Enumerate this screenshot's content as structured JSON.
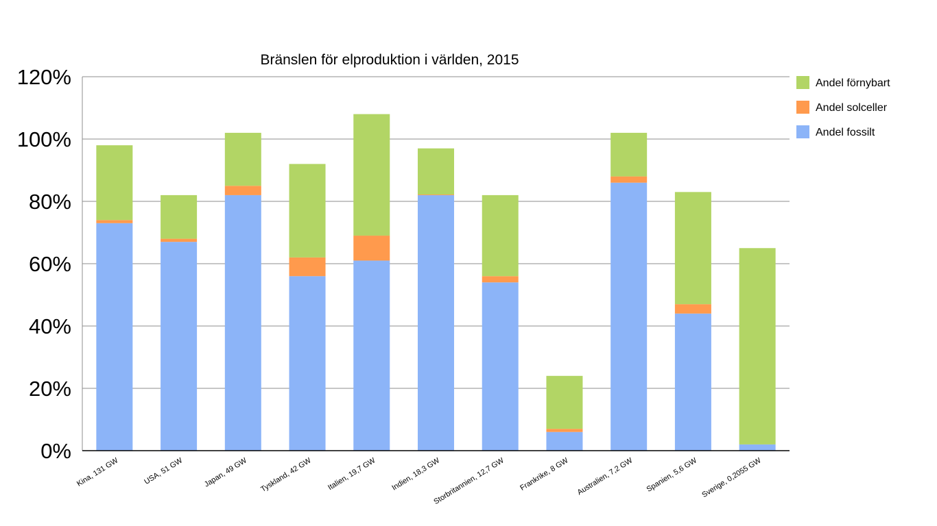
{
  "chart_data": {
    "type": "bar",
    "stacked": true,
    "title": "Bränslen för elproduktion i världen, 2015",
    "xlabel": "",
    "ylabel": "",
    "ylim": [
      0,
      120
    ],
    "y_tick_labels": [
      "0%",
      "20%",
      "40%",
      "60%",
      "80%",
      "100%",
      "120%"
    ],
    "grid": true,
    "legend_position": "right",
    "categories": [
      "Kina, 131 GW",
      "USA, 51 GW",
      "Japan, 49 GW",
      "Tyskland, 42 GW",
      "Italien, 19,7 GW",
      "Indien, 18,3 GW",
      "Storbritannien, 12,7 GW",
      "Frankrike, 8 GW",
      "Australien, 7,2 GW",
      "Spanien, 5,6 GW",
      "Sverige, 0,2055 GW"
    ],
    "series": [
      {
        "name": "Andel fossilt",
        "color": "#8cb4f8",
        "values": [
          73,
          67,
          82,
          56,
          61,
          82,
          54,
          6,
          86,
          44,
          2
        ]
      },
      {
        "name": "Andel solceller",
        "color": "#ff9a4d",
        "values": [
          1,
          1,
          3,
          6,
          8,
          0.2,
          2,
          1,
          2,
          3,
          0
        ]
      },
      {
        "name": "Andel förnybart",
        "color": "#b2d565",
        "values": [
          24,
          14,
          17,
          30,
          39,
          14.8,
          26,
          17,
          14,
          36,
          63
        ]
      }
    ],
    "legend_order": [
      "Andel förnybart",
      "Andel solceller",
      "Andel fossilt"
    ]
  }
}
